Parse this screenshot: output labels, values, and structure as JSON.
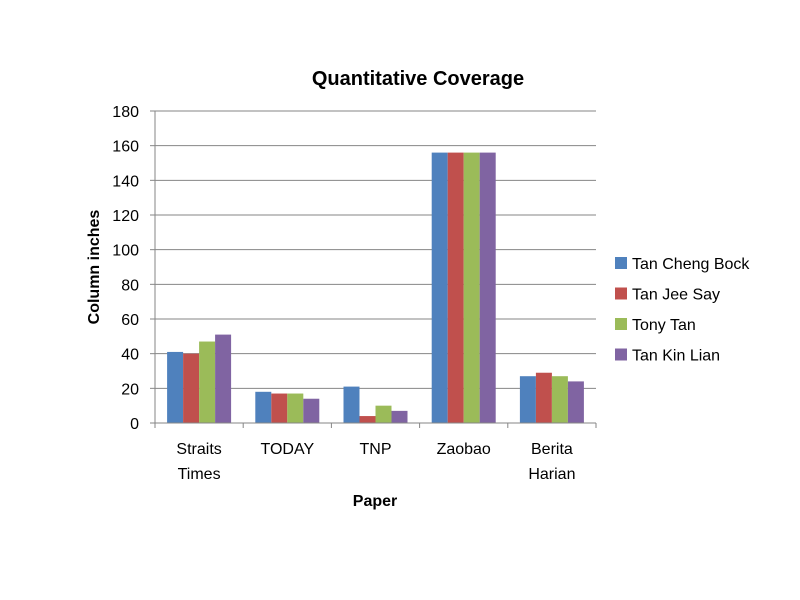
{
  "chart_data": {
    "type": "bar",
    "title": "Quantitative Coverage",
    "xlabel": "Paper",
    "ylabel": "Column inches",
    "ylim": [
      0,
      180
    ],
    "yticks": [
      0,
      20,
      40,
      60,
      80,
      100,
      120,
      140,
      160,
      180
    ],
    "grid": true,
    "legend_position": "right",
    "categories": [
      [
        "Straits",
        "Times"
      ],
      [
        "TODAY"
      ],
      [
        "TNP"
      ],
      [
        "Zaobao"
      ],
      [
        "Berita",
        "Harian"
      ]
    ],
    "series": [
      {
        "name": "Tan Cheng Bock",
        "color": "#4F81BD",
        "values": [
          41,
          18,
          21,
          156,
          27
        ]
      },
      {
        "name": "Tan Jee Say",
        "color": "#C0504D",
        "values": [
          40,
          17,
          4,
          156,
          29
        ]
      },
      {
        "name": "Tony Tan",
        "color": "#9BBB59",
        "values": [
          47,
          17,
          10,
          156,
          27
        ]
      },
      {
        "name": "Tan Kin Lian",
        "color": "#8064A2",
        "values": [
          51,
          14,
          7,
          156,
          24
        ]
      }
    ]
  }
}
